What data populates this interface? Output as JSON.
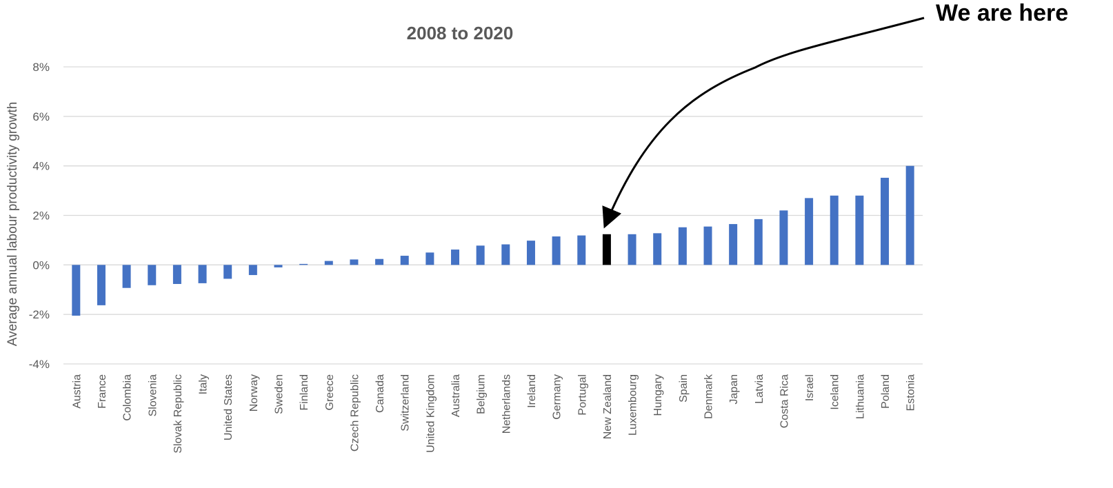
{
  "chart_data": {
    "type": "bar",
    "title": "2008 to 2020",
    "xlabel": "",
    "ylabel": "Average annual  labour productivity growth",
    "ylim": [
      -4,
      8
    ],
    "yticks": [
      -4,
      -2,
      0,
      2,
      4,
      6,
      8
    ],
    "ytick_labels": [
      "-4%",
      "-2%",
      "0%",
      "2%",
      "4%",
      "6%",
      "8%"
    ],
    "grid": true,
    "legend": "none",
    "categories": [
      "Austria",
      "France",
      "Colombia",
      "Slovenia",
      "Slovak Republic",
      "Italy",
      "United States",
      "Norway",
      "Sweden",
      "Finland",
      "Greece",
      "Czech Republic",
      "Canada",
      "Switzerland",
      "United Kingdom",
      "Australia",
      "Belgium",
      "Netherlands",
      "Ireland",
      "Germany",
      "Portugal",
      "New Zealand",
      "Luxembourg",
      "Hungary",
      "Spain",
      "Denmark",
      "Japan",
      "Latvia",
      "Costa Rica",
      "Israel",
      "Iceland",
      "Lithuania",
      "Poland",
      "Estonia"
    ],
    "values": [
      -2.05,
      -1.63,
      -0.93,
      -0.82,
      -0.77,
      -0.74,
      -0.56,
      -0.41,
      -0.1,
      0.04,
      0.16,
      0.22,
      0.24,
      0.37,
      0.5,
      0.62,
      0.78,
      0.83,
      0.98,
      1.15,
      1.19,
      1.24,
      1.24,
      1.28,
      1.52,
      1.55,
      1.65,
      1.85,
      2.2,
      2.7,
      2.8,
      2.8,
      3.52,
      4.0
    ],
    "highlight_category": "New Zealand",
    "colors": {
      "bar": "#4472c4",
      "highlight": "#000000",
      "grid": "#d9d9d9",
      "text": "#595959",
      "arrow": "#000000"
    },
    "annotation": {
      "text": "We are here",
      "target": "New Zealand"
    }
  }
}
